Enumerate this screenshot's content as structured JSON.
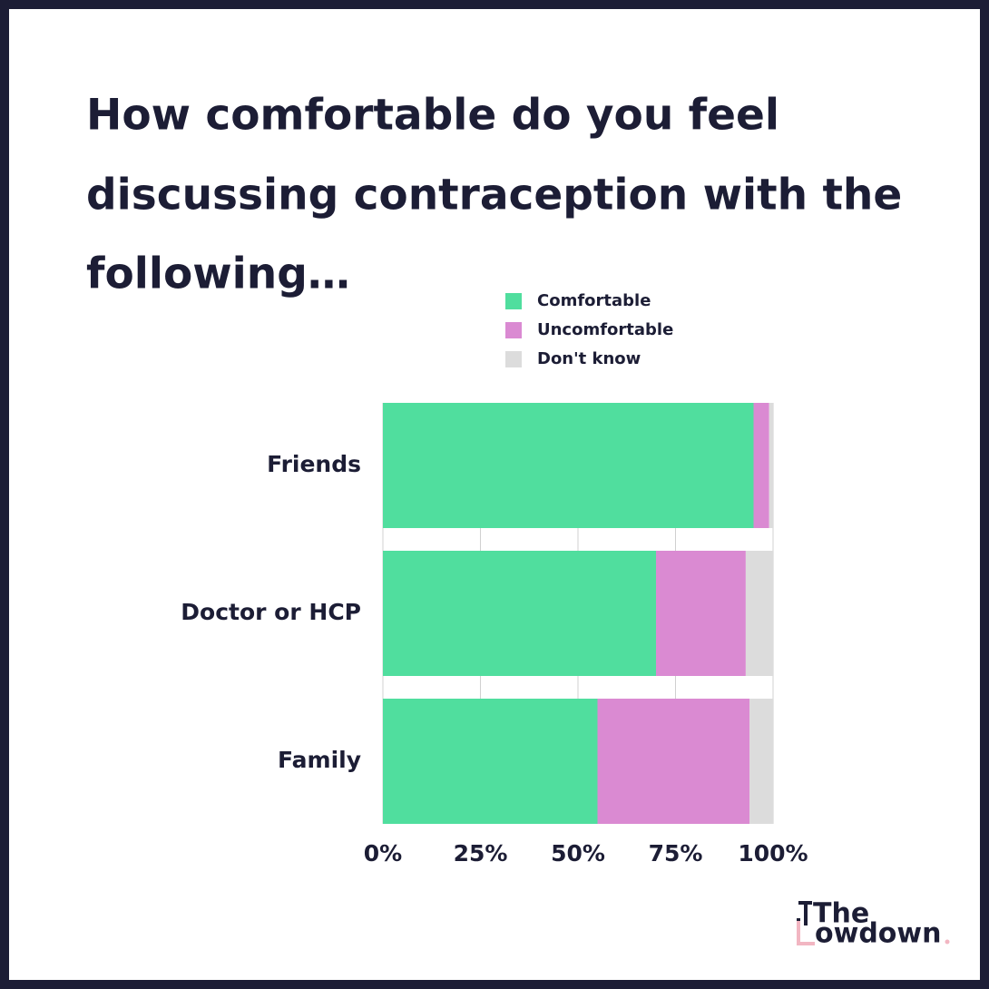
{
  "chart_data": {
    "type": "stacked-barh",
    "title": [
      "How comfortable do you feel",
      "discussing contraception with the",
      "following…"
    ],
    "categories": [
      "Friends",
      "Doctor or HCP",
      "Family"
    ],
    "series": [
      {
        "name": "Comfortable",
        "color": "#50de9e",
        "values": [
          95,
          70,
          55
        ]
      },
      {
        "name": "Uncomfortable",
        "color": "#da8ad2",
        "values": [
          4,
          23,
          39
        ]
      },
      {
        "name": "Don't know",
        "color": "#dcdcdc",
        "values": [
          1,
          7,
          6
        ]
      }
    ],
    "xlim": [
      0,
      100
    ],
    "xticks": [
      {
        "value": 0,
        "label": "0%"
      },
      {
        "value": 25,
        "label": "25%"
      },
      {
        "value": 50,
        "label": "50%"
      },
      {
        "value": 75,
        "label": "75%"
      },
      {
        "value": 100,
        "label": "100%"
      }
    ],
    "grid": true
  },
  "logo": {
    "line1": "The",
    "line2": "owdown"
  }
}
